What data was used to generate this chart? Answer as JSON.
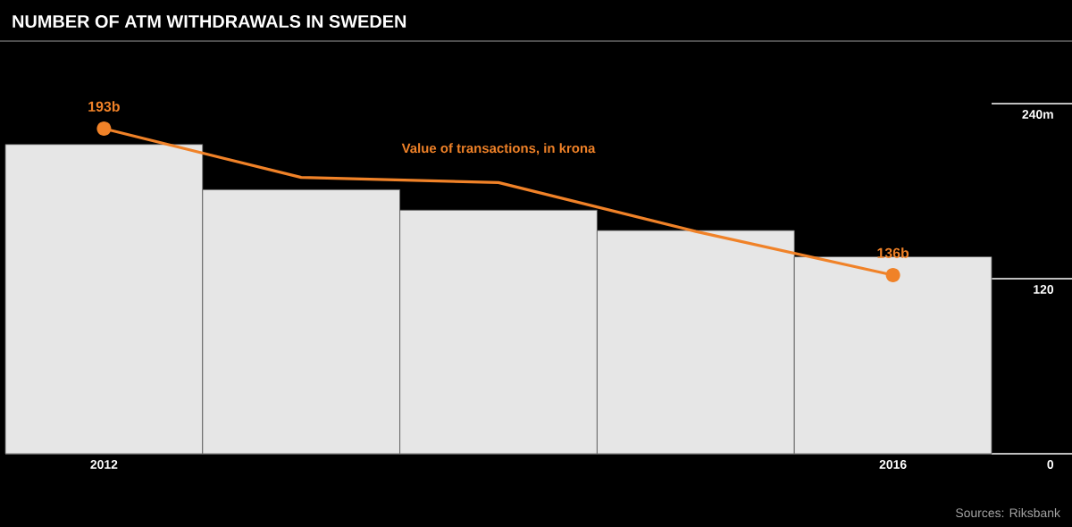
{
  "chart_data": {
    "type": "bar",
    "title": "NUMBER OF ATM WITHDRAWALS IN SWEDEN",
    "categories": [
      "2012",
      null,
      null,
      null,
      "2016"
    ],
    "ylim": [
      0,
      240
    ],
    "yticks": [
      0,
      120,
      {
        "value": 240,
        "label": "240m"
      }
    ],
    "series": [
      {
        "color": "#e6e6e6",
        "values": [
          212,
          181,
          167,
          153,
          135
        ]
      },
      {
        "type": "line",
        "axis": "y2",
        "name": "Value of transactions, in krona",
        "color": "#f08228",
        "values": [
          193,
          174,
          172,
          153,
          136
        ],
        "value_labels": [
          "193b",
          null,
          null,
          null,
          "136b"
        ]
      }
    ],
    "annotations": [
      "Sources: Riksbank"
    ]
  }
}
